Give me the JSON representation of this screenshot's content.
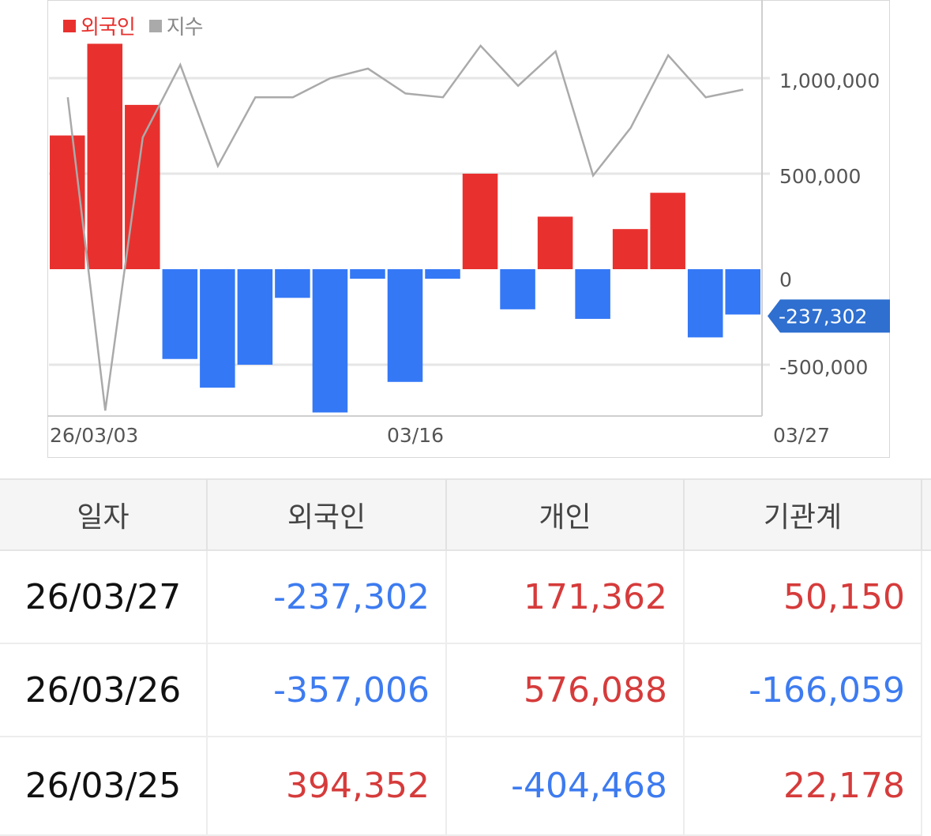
{
  "chart_data": {
    "type": "bar",
    "legend": [
      {
        "name": "외국인",
        "color": "#e8312e"
      },
      {
        "name": "지수",
        "color": "#aaaaaa"
      }
    ],
    "x_ticks": [
      "26/03/03",
      "03/16",
      "03/27"
    ],
    "y_ticks": [
      "1,000,000",
      "500,000",
      "0",
      "-500,000"
    ],
    "ylim": [
      -750000,
      1400000
    ],
    "positive_color": "#e8312e",
    "negative_color": "#3478f6",
    "series": [
      {
        "name": "외국인",
        "type": "bar",
        "values": [
          700000,
          1180000,
          860000,
          -470000,
          -620000,
          -500000,
          -150000,
          -750000,
          -50000,
          -590000,
          -50000,
          500000,
          -210000,
          275000,
          -260000,
          210000,
          400000,
          -357006,
          -237302
        ]
      },
      {
        "name": "지수",
        "type": "line",
        "values": [
          900000,
          -740000,
          690000,
          1070000,
          540000,
          900000,
          900000,
          1000000,
          1050000,
          920000,
          900000,
          1170000,
          960000,
          1140000,
          490000,
          740000,
          1120000,
          900000,
          940000
        ]
      }
    ],
    "current_value_label": "-237,302",
    "current_label_color": "#2e6fd0",
    "grid": true
  },
  "table": {
    "headers": [
      "일자",
      "외국인",
      "개인",
      "기관계"
    ],
    "rows": [
      {
        "date": "26/03/27",
        "foreign": "-237,302",
        "individual": "171,362",
        "institution": "50,150"
      },
      {
        "date": "26/03/26",
        "foreign": "-357,006",
        "individual": "576,088",
        "institution": "-166,059"
      },
      {
        "date": "26/03/25",
        "foreign": "394,352",
        "individual": "-404,468",
        "institution": "22,178"
      }
    ]
  }
}
